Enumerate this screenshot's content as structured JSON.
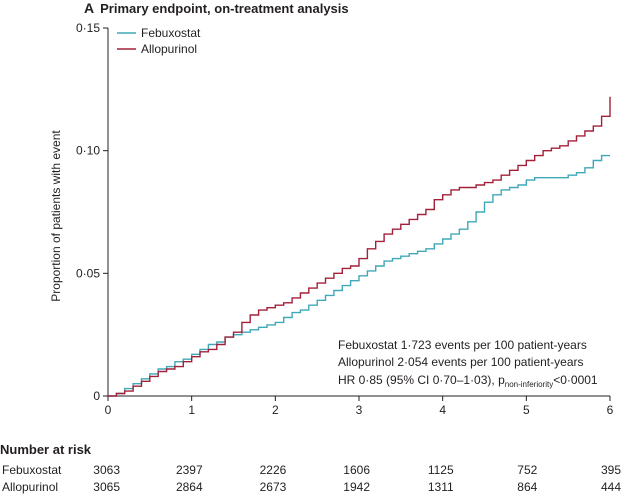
{
  "panel": {
    "letter": "A",
    "title": "Primary endpoint, on-treatment analysis"
  },
  "colors": {
    "febuxostat": "#3fa9b8",
    "allopurinol": "#a3203a",
    "axis": "#231f20"
  },
  "chart_data": {
    "type": "line",
    "title": "Primary endpoint, on-treatment analysis",
    "xlabel": "",
    "ylabel": "Proportion of patients with event",
    "xlim": [
      0,
      6
    ],
    "ylim": [
      0,
      0.15
    ],
    "x_ticks": [
      0,
      1,
      2,
      3,
      4,
      5,
      6
    ],
    "x_tick_labels": [
      "0",
      "1",
      "2",
      "3",
      "4",
      "5",
      "6"
    ],
    "y_ticks": [
      0,
      0.05,
      0.1,
      0.15
    ],
    "y_tick_labels": [
      "0",
      "0·05",
      "0·10",
      "0·15"
    ],
    "legend_position": "top-left",
    "grid": false,
    "series": [
      {
        "name": "Febuxostat",
        "color": "#3fa9b8",
        "step": true,
        "x": [
          0,
          0.1,
          0.2,
          0.3,
          0.4,
          0.5,
          0.6,
          0.7,
          0.8,
          0.9,
          1.0,
          1.1,
          1.2,
          1.3,
          1.4,
          1.5,
          1.6,
          1.7,
          1.8,
          1.9,
          2.0,
          2.1,
          2.2,
          2.3,
          2.4,
          2.5,
          2.6,
          2.7,
          2.8,
          2.9,
          3.0,
          3.1,
          3.2,
          3.3,
          3.4,
          3.5,
          3.6,
          3.7,
          3.8,
          3.9,
          4.0,
          4.1,
          4.2,
          4.3,
          4.4,
          4.5,
          4.6,
          4.7,
          4.8,
          4.9,
          5.0,
          5.1,
          5.2,
          5.3,
          5.4,
          5.5,
          5.6,
          5.7,
          5.8,
          5.9,
          6.0
        ],
        "y": [
          0,
          0.001,
          0.003,
          0.005,
          0.007,
          0.009,
          0.011,
          0.012,
          0.014,
          0.015,
          0.017,
          0.019,
          0.021,
          0.022,
          0.024,
          0.025,
          0.026,
          0.027,
          0.028,
          0.029,
          0.03,
          0.032,
          0.034,
          0.035,
          0.037,
          0.039,
          0.041,
          0.043,
          0.045,
          0.047,
          0.049,
          0.051,
          0.053,
          0.055,
          0.056,
          0.057,
          0.058,
          0.059,
          0.06,
          0.062,
          0.064,
          0.066,
          0.068,
          0.071,
          0.075,
          0.079,
          0.082,
          0.084,
          0.085,
          0.086,
          0.088,
          0.089,
          0.089,
          0.089,
          0.089,
          0.09,
          0.091,
          0.093,
          0.096,
          0.098,
          0.098
        ]
      },
      {
        "name": "Allopurinol",
        "color": "#a3203a",
        "step": true,
        "x": [
          0,
          0.1,
          0.2,
          0.3,
          0.4,
          0.5,
          0.6,
          0.7,
          0.8,
          0.9,
          1.0,
          1.1,
          1.2,
          1.3,
          1.4,
          1.5,
          1.6,
          1.7,
          1.8,
          1.9,
          2.0,
          2.1,
          2.2,
          2.3,
          2.4,
          2.5,
          2.6,
          2.7,
          2.8,
          2.9,
          3.0,
          3.1,
          3.2,
          3.3,
          3.4,
          3.5,
          3.6,
          3.7,
          3.8,
          3.9,
          4.0,
          4.1,
          4.2,
          4.3,
          4.4,
          4.5,
          4.6,
          4.7,
          4.8,
          4.9,
          5.0,
          5.1,
          5.2,
          5.3,
          5.4,
          5.5,
          5.6,
          5.7,
          5.8,
          5.9,
          6.0
        ],
        "y": [
          0,
          0.001,
          0.002,
          0.004,
          0.006,
          0.008,
          0.01,
          0.011,
          0.012,
          0.014,
          0.016,
          0.018,
          0.019,
          0.021,
          0.024,
          0.026,
          0.03,
          0.033,
          0.035,
          0.036,
          0.037,
          0.038,
          0.04,
          0.042,
          0.044,
          0.046,
          0.048,
          0.05,
          0.052,
          0.053,
          0.056,
          0.06,
          0.063,
          0.066,
          0.068,
          0.07,
          0.072,
          0.074,
          0.076,
          0.08,
          0.082,
          0.084,
          0.085,
          0.085,
          0.086,
          0.087,
          0.088,
          0.09,
          0.092,
          0.094,
          0.096,
          0.098,
          0.1,
          0.101,
          0.102,
          0.104,
          0.106,
          0.108,
          0.11,
          0.114,
          0.122
        ]
      }
    ],
    "annotations": [
      "Febuxostat 1·723 events per 100 patient-years",
      "Allopurinol 2·054 events per 100 patient-years",
      "HR 0·85 (95% CI 0·70–1·03), p",
      "non-inferiority",
      "<0·0001"
    ]
  },
  "risk_table": {
    "title": "Number at risk",
    "rows": [
      {
        "label": "Febuxostat",
        "values": [
          "3063",
          "2397",
          "2226",
          "1606",
          "1125",
          "752",
          "395"
        ]
      },
      {
        "label": "Allopurinol",
        "values": [
          "3065",
          "2864",
          "2673",
          "1942",
          "1311",
          "864",
          "444"
        ]
      }
    ]
  }
}
